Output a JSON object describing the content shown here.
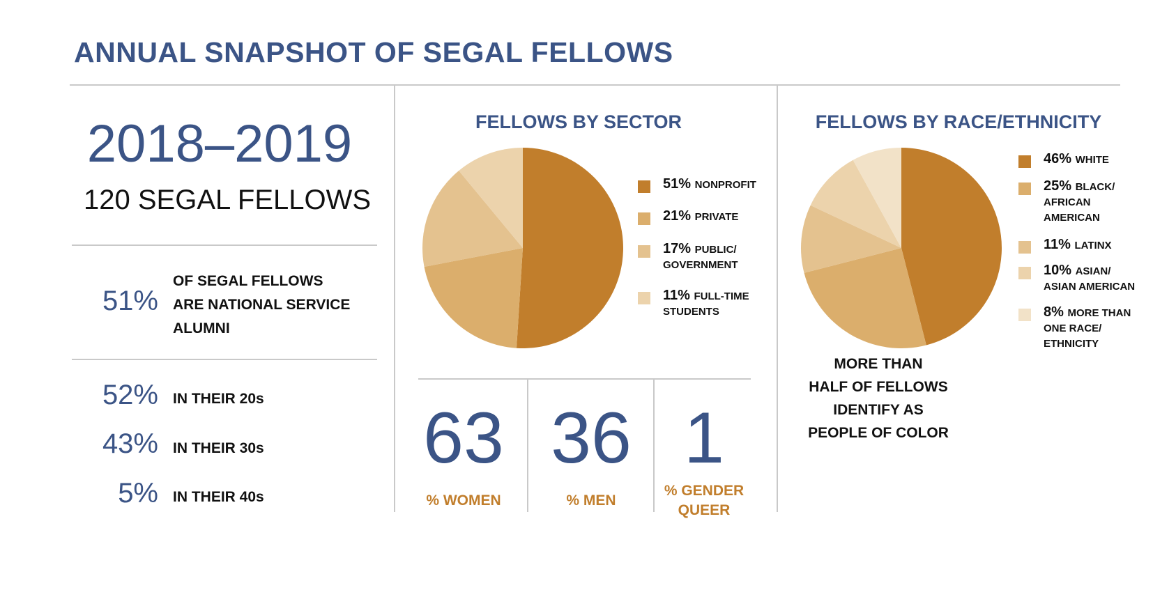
{
  "title": "ANNUAL SNAPSHOT OF SEGAL FELLOWS",
  "years": "2018–2019",
  "fellow_count": "120 SEGAL FELLOWS",
  "national_service": {
    "pct": "51%",
    "lines": [
      "OF SEGAL FELLOWS",
      "ARE NATIONAL SERVICE",
      "ALUMNI"
    ]
  },
  "ages": [
    {
      "pct": "52%",
      "label": "IN THEIR 20s"
    },
    {
      "pct": "43%",
      "label": "IN THEIR 30s"
    },
    {
      "pct": "5%",
      "label": "IN THEIR 40s"
    }
  ],
  "gender": [
    {
      "value": "63",
      "label_lines": [
        "% WOMEN"
      ]
    },
    {
      "value": "36",
      "label_lines": [
        "% MEN"
      ]
    },
    {
      "value": "1",
      "label_lines": [
        "% GENDER",
        "QUEER"
      ]
    }
  ],
  "poc_note": [
    "MORE THAN",
    "HALF OF FELLOWS",
    "IDENTIFY AS",
    "PEOPLE OF COLOR"
  ],
  "colors": {
    "navy": "#3b5486",
    "gold": "#c17e2c",
    "shades": [
      "#c17e2c",
      "#dbae6c",
      "#e4c28f",
      "#ecd3ac",
      "#f2e2c8"
    ]
  },
  "chart_data": [
    {
      "type": "pie",
      "title": "FELLOWS BY SECTOR",
      "slices": [
        {
          "pct_label": "51%",
          "label_lines": [
            "NONPROFIT"
          ],
          "value": 51
        },
        {
          "pct_label": "21%",
          "label_lines": [
            "PRIVATE"
          ],
          "value": 21
        },
        {
          "pct_label": "17%",
          "label_lines": [
            "PUBLIC/",
            "GOVERNMENT"
          ],
          "value": 17
        },
        {
          "pct_label": "11%",
          "label_lines": [
            "FULL-TIME",
            "STUDENTS"
          ],
          "value": 11
        }
      ],
      "legend": "right"
    },
    {
      "type": "pie",
      "title": "FELLOWS BY RACE/ETHNICITY",
      "slices": [
        {
          "pct_label": "46%",
          "label_lines": [
            "WHITE"
          ],
          "value": 46
        },
        {
          "pct_label": "25%",
          "label_lines": [
            "BLACK/",
            "AFRICAN",
            "AMERICAN"
          ],
          "value": 25
        },
        {
          "pct_label": "11%",
          "label_lines": [
            "LATINX"
          ],
          "value": 11
        },
        {
          "pct_label": "10%",
          "label_lines": [
            "ASIAN/",
            "ASIAN AMERICAN"
          ],
          "value": 10
        },
        {
          "pct_label": "8%",
          "label_lines": [
            "MORE THAN",
            "ONE RACE/",
            "ETHNICITY"
          ],
          "value": 8
        }
      ],
      "legend": "right"
    }
  ]
}
